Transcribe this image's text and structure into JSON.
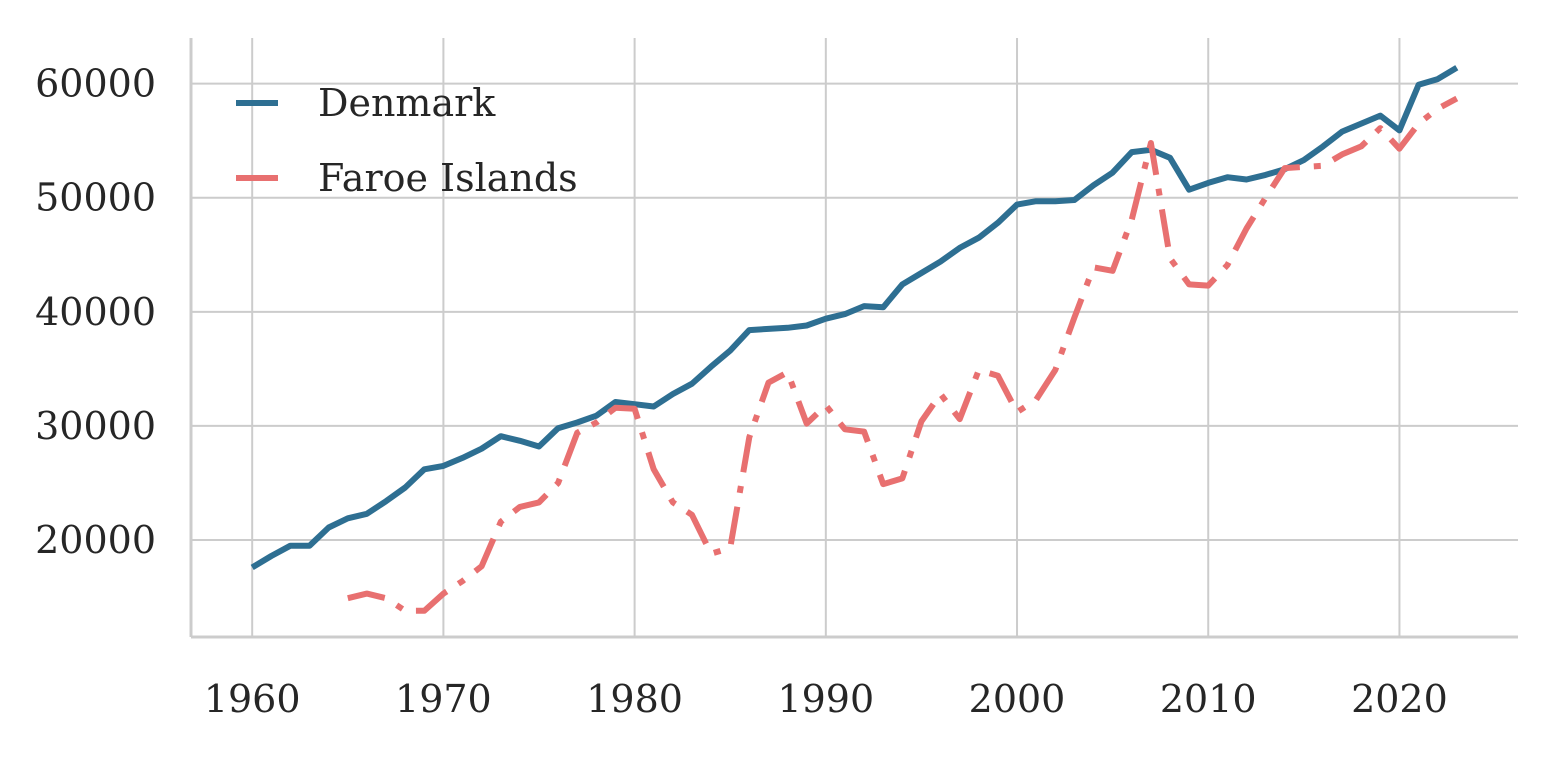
{
  "chart_data": {
    "type": "line",
    "title": "",
    "xlabel": "",
    "ylabel": "",
    "xlim": [
      1956.8,
      2026.2
    ],
    "ylim": [
      11500,
      64000
    ],
    "xticks": [
      1960,
      1970,
      1980,
      1990,
      2000,
      2010,
      2020
    ],
    "yticks": [
      20000,
      30000,
      40000,
      50000,
      60000
    ],
    "grid": true,
    "legend": "top-left",
    "series": [
      {
        "name": "Denmark",
        "color": "#2e6f92",
        "style": "solid",
        "x": [
          1960,
          1961,
          1962,
          1963,
          1964,
          1965,
          1966,
          1967,
          1968,
          1969,
          1970,
          1971,
          1972,
          1973,
          1974,
          1975,
          1976,
          1977,
          1978,
          1979,
          1980,
          1981,
          1982,
          1983,
          1984,
          1985,
          1986,
          1987,
          1988,
          1989,
          1990,
          1991,
          1992,
          1993,
          1994,
          1995,
          1996,
          1997,
          1998,
          1999,
          2000,
          2001,
          2002,
          2003,
          2004,
          2005,
          2006,
          2007,
          2008,
          2009,
          2010,
          2011,
          2012,
          2013,
          2014,
          2015,
          2016,
          2017,
          2018,
          2019,
          2020,
          2021,
          2022,
          2023
        ],
        "y": [
          17600,
          18600,
          19500,
          19500,
          21100,
          21900,
          22300,
          23400,
          24600,
          26200,
          26500,
          27200,
          28000,
          29100,
          28700,
          28200,
          29800,
          30300,
          30900,
          32100,
          31900,
          31700,
          32800,
          33700,
          35200,
          36600,
          38400,
          38500,
          38600,
          38800,
          39400,
          39800,
          40500,
          40400,
          42400,
          43400,
          44400,
          45600,
          46500,
          47800,
          49400,
          49700,
          49700,
          49800,
          51100,
          52200,
          54000,
          54200,
          53500,
          50700,
          51300,
          51800,
          51600,
          52000,
          52500,
          53300,
          54500,
          55800,
          56500,
          57200,
          55900,
          59900,
          60400,
          61400
        ]
      },
      {
        "name": "Faroe Islands",
        "color": "#e87070",
        "style": "dashdot",
        "x": [
          1965,
          1966,
          1967,
          1968,
          1969,
          1970,
          1971,
          1972,
          1973,
          1974,
          1975,
          1976,
          1977,
          1978,
          1979,
          1980,
          1981,
          1982,
          1983,
          1984,
          1985,
          1986,
          1987,
          1988,
          1989,
          1990,
          1991,
          1992,
          1993,
          1994,
          1995,
          1996,
          1997,
          1998,
          1999,
          2000,
          2001,
          2002,
          2003,
          2004,
          2005,
          2006,
          2007,
          2008,
          2009,
          2010,
          2011,
          2012,
          2013,
          2014,
          2015,
          2016,
          2017,
          2018,
          2019,
          2020,
          2021,
          2022,
          2023
        ],
        "y": [
          14900,
          15300,
          14900,
          13800,
          13800,
          15300,
          16400,
          17700,
          21600,
          22900,
          23300,
          25000,
          29400,
          30300,
          31600,
          31500,
          26200,
          23300,
          22200,
          18800,
          19300,
          29000,
          33800,
          34700,
          30200,
          31800,
          29700,
          29500,
          24900,
          25400,
          30400,
          32800,
          30600,
          34900,
          34400,
          31200,
          32300,
          34900,
          39500,
          43900,
          43600,
          48100,
          54800,
          44700,
          42400,
          42300,
          44100,
          47300,
          50000,
          52600,
          52700,
          52800,
          53800,
          54500,
          56100,
          54300,
          56500,
          57800,
          58700
        ]
      }
    ]
  }
}
